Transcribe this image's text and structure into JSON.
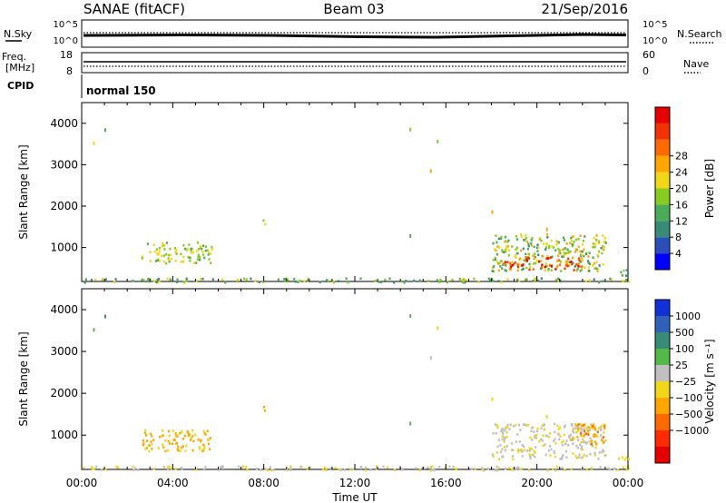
{
  "header": {
    "station": "SANAE (fitACF)",
    "beam": "Beam 03",
    "date": "21/Sep/2016"
  },
  "top_panels": {
    "nsky_label": "N.Sky",
    "nsearch_label": "N.Search",
    "nsky_ticks": [
      "10^5",
      "10^0"
    ],
    "nsearch_ticks": [
      "10^5",
      "10^0"
    ],
    "freq_label_1": "Freq.",
    "freq_label_2": "[MHz]",
    "freq_ticks": [
      "18",
      "8"
    ],
    "nave_label": "Nave",
    "nave_ticks": [
      "60",
      "0"
    ],
    "cpid_label": "CPID",
    "cpid_value": "normal 150"
  },
  "colors": {
    "power_scale": [
      "#0000ff",
      "#2a4fb8",
      "#3a8a78",
      "#4cab58",
      "#88cc22",
      "#f2d61a",
      "#ffa600",
      "#ff6a00",
      "#f23200",
      "#e60000"
    ],
    "velocity_scale": [
      "#1030d8",
      "#3060b8",
      "#3a8a78",
      "#55b84a",
      "#c0c0c0",
      "#f2d61a",
      "#ffa600",
      "#ff6a00",
      "#ff2a00",
      "#e60000"
    ]
  },
  "chart_data": [
    {
      "type": "heatmap",
      "panel": "power",
      "ylabel": "Slant Range [km]",
      "xlabel": "Time UT",
      "x_ticks": [
        "00:00",
        "04:00",
        "08:00",
        "12:00",
        "16:00",
        "20:00",
        "00:00"
      ],
      "xlim": [
        0,
        24
      ],
      "ylim": [
        180,
        4500
      ],
      "y_ticks": [
        1000,
        2000,
        3000,
        4000
      ],
      "colorbar_label": "Power [dB]",
      "colorbar_ticks": [
        "4",
        "8",
        "12",
        "16",
        "20",
        "24",
        "28"
      ],
      "colorbar_range": [
        0,
        30
      ],
      "patches": [
        {
          "t0": 2.6,
          "t1": 5.7,
          "r0": 640,
          "r1": 1150,
          "v0": 10,
          "v1": 18
        },
        {
          "t0": 18.0,
          "t1": 23.0,
          "r0": 450,
          "r1": 1350,
          "v0": 8,
          "v1": 20
        },
        {
          "t0": 18.5,
          "t1": 22.0,
          "r0": 480,
          "r1": 800,
          "v0": 20,
          "v1": 29
        },
        {
          "t0": 7.9,
          "t1": 8.1,
          "r0": 1580,
          "r1": 1720,
          "v0": 12,
          "v1": 16
        },
        {
          "t0": 23.5,
          "t1": 24.0,
          "r0": 200,
          "r1": 500,
          "v0": 6,
          "v1": 14
        },
        {
          "t0": 0.0,
          "t1": 24.0,
          "r0": 180,
          "r1": 280,
          "v0": 6,
          "v1": 18
        }
      ],
      "scatter": [
        {
          "t": 0.5,
          "r": 3560,
          "v": 16
        },
        {
          "t": 1.0,
          "r": 3880,
          "v": 10
        },
        {
          "t": 14.4,
          "r": 3890,
          "v": 12
        },
        {
          "t": 15.3,
          "r": 2890,
          "v": 20
        },
        {
          "t": 15.6,
          "r": 3600,
          "v": 14
        },
        {
          "t": 18.0,
          "r": 1900,
          "v": 18
        },
        {
          "t": 14.4,
          "r": 1320,
          "v": 10
        },
        {
          "t": 20.4,
          "r": 1480,
          "v": 20
        }
      ]
    },
    {
      "type": "heatmap",
      "panel": "velocity",
      "ylabel": "Slant Range [km]",
      "xlabel": "Time UT",
      "x_ticks": [
        "00:00",
        "04:00",
        "08:00",
        "12:00",
        "16:00",
        "20:00",
        "00:00"
      ],
      "xlim": [
        0,
        24
      ],
      "ylim": [
        180,
        4500
      ],
      "y_ticks": [
        1000,
        2000,
        3000,
        4000
      ],
      "colorbar_label": "Velocity [m s⁻¹]",
      "colorbar_ticks": [
        "1000",
        "500",
        "100",
        "25",
        "−25",
        "−100",
        "−500",
        "−1000"
      ],
      "colorbar_range": [
        -1000,
        1000
      ],
      "patches": [
        {
          "t0": 2.6,
          "t1": 5.7,
          "r0": 640,
          "r1": 1150,
          "v0": -400,
          "v1": -80
        },
        {
          "t0": 18.0,
          "t1": 23.0,
          "r0": 450,
          "r1": 1300,
          "v0": -80,
          "v1": 150
        },
        {
          "t0": 21.5,
          "t1": 23.0,
          "r0": 800,
          "r1": 1300,
          "v0": -500,
          "v1": -150
        },
        {
          "t0": 7.9,
          "t1": 8.1,
          "r0": 1580,
          "r1": 1720,
          "v0": -400,
          "v1": -200
        },
        {
          "t0": 23.5,
          "t1": 24.0,
          "r0": 200,
          "r1": 500,
          "v0": -200,
          "v1": 50
        },
        {
          "t0": 0.0,
          "t1": 24.0,
          "r0": 180,
          "r1": 280,
          "v0": -100,
          "v1": 120
        }
      ],
      "scatter": [
        {
          "t": 0.5,
          "r": 3560,
          "v": 300
        },
        {
          "t": 1.0,
          "r": 3880,
          "v": 500
        },
        {
          "t": 14.4,
          "r": 3890,
          "v": 200
        },
        {
          "t": 15.3,
          "r": 2890,
          "v": 100
        },
        {
          "t": 15.6,
          "r": 3600,
          "v": -200
        },
        {
          "t": 18.0,
          "r": 1900,
          "v": -100
        },
        {
          "t": 14.4,
          "r": 1320,
          "v": 200
        },
        {
          "t": 20.4,
          "r": 1480,
          "v": -150
        }
      ]
    }
  ]
}
